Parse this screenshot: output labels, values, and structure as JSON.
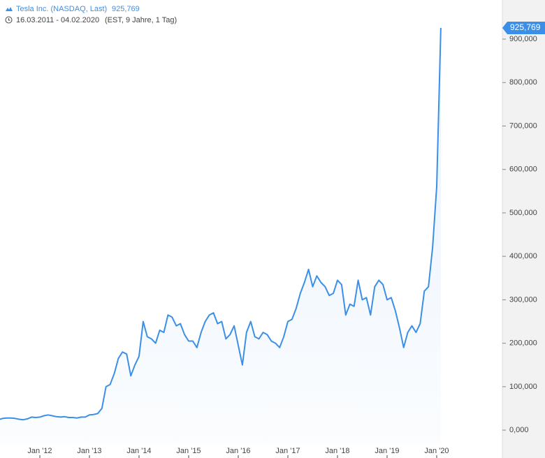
{
  "header": {
    "instrument": "Tesla Inc. (NASDAQ, Last)",
    "last_value": "925,769",
    "range": "16.03.2011 - 04.02.2020",
    "info": "(EST, 9 Jahre, 1 Tag)"
  },
  "chart_data": {
    "type": "line",
    "x": [
      "2011-03",
      "2011-04",
      "2011-05",
      "2011-06",
      "2011-07",
      "2011-08",
      "2011-09",
      "2011-10",
      "2011-11",
      "2011-12",
      "2012-01",
      "2012-02",
      "2012-03",
      "2012-04",
      "2012-05",
      "2012-06",
      "2012-07",
      "2012-08",
      "2012-09",
      "2012-10",
      "2012-11",
      "2012-12",
      "2013-01",
      "2013-02",
      "2013-03",
      "2013-04",
      "2013-05",
      "2013-06",
      "2013-07",
      "2013-08",
      "2013-09",
      "2013-10",
      "2013-11",
      "2013-12",
      "2014-01",
      "2014-02",
      "2014-03",
      "2014-04",
      "2014-05",
      "2014-06",
      "2014-07",
      "2014-08",
      "2014-09",
      "2014-10",
      "2014-11",
      "2014-12",
      "2015-01",
      "2015-02",
      "2015-03",
      "2015-04",
      "2015-05",
      "2015-06",
      "2015-07",
      "2015-08",
      "2015-09",
      "2015-10",
      "2015-11",
      "2015-12",
      "2016-01",
      "2016-02",
      "2016-03",
      "2016-04",
      "2016-05",
      "2016-06",
      "2016-07",
      "2016-08",
      "2016-09",
      "2016-10",
      "2016-11",
      "2016-12",
      "2017-01",
      "2017-02",
      "2017-03",
      "2017-04",
      "2017-05",
      "2017-06",
      "2017-07",
      "2017-08",
      "2017-09",
      "2017-10",
      "2017-11",
      "2017-12",
      "2018-01",
      "2018-02",
      "2018-03",
      "2018-04",
      "2018-05",
      "2018-06",
      "2018-07",
      "2018-08",
      "2018-09",
      "2018-10",
      "2018-11",
      "2018-12",
      "2019-01",
      "2019-02",
      "2019-03",
      "2019-04",
      "2019-05",
      "2019-06",
      "2019-07",
      "2019-08",
      "2019-09",
      "2019-10",
      "2019-11",
      "2019-12",
      "2020-01",
      "2020-02"
    ],
    "series": [
      {
        "name": "Tesla Inc. (NASDAQ, Last)",
        "color": "#3b8fe8",
        "values": [
          24000,
          27000,
          28000,
          28000,
          27000,
          25000,
          24000,
          26000,
          30000,
          29000,
          30000,
          33000,
          35000,
          33000,
          31000,
          30000,
          31000,
          29000,
          29000,
          28000,
          30000,
          30000,
          35000,
          36000,
          38000,
          50000,
          100000,
          105000,
          130000,
          165000,
          180000,
          175000,
          125000,
          150000,
          170000,
          250000,
          215000,
          210000,
          200000,
          230000,
          225000,
          265000,
          260000,
          240000,
          245000,
          220000,
          205000,
          205000,
          190000,
          225000,
          250000,
          265000,
          270000,
          245000,
          250000,
          210000,
          220000,
          240000,
          195000,
          150000,
          225000,
          250000,
          215000,
          210000,
          225000,
          220000,
          205000,
          200000,
          190000,
          215000,
          250000,
          255000,
          280000,
          315000,
          340000,
          370000,
          330000,
          355000,
          340000,
          330000,
          310000,
          315000,
          345000,
          335000,
          265000,
          290000,
          285000,
          345000,
          300000,
          305000,
          265000,
          330000,
          345000,
          335000,
          300000,
          305000,
          275000,
          235000,
          190000,
          225000,
          240000,
          225000,
          245000,
          320000,
          330000,
          420000,
          560000,
          925769
        ]
      }
    ],
    "xticks": [
      {
        "value": "2012-01",
        "label": "Jan '12"
      },
      {
        "value": "2013-01",
        "label": "Jan '13"
      },
      {
        "value": "2014-01",
        "label": "Jan '14"
      },
      {
        "value": "2015-01",
        "label": "Jan '15"
      },
      {
        "value": "2016-01",
        "label": "Jan '16"
      },
      {
        "value": "2017-01",
        "label": "Jan '17"
      },
      {
        "value": "2018-01",
        "label": "Jan '18"
      },
      {
        "value": "2019-01",
        "label": "Jan '19"
      },
      {
        "value": "2020-01",
        "label": "Jan '20"
      }
    ],
    "ylim": [
      -32000,
      990000
    ],
    "yticks": [
      {
        "value": 0,
        "label": "0,000"
      },
      {
        "value": 100000,
        "label": "100,000"
      },
      {
        "value": 200000,
        "label": "200,000"
      },
      {
        "value": 300000,
        "label": "300,000"
      },
      {
        "value": 400000,
        "label": "400,000"
      },
      {
        "value": 500000,
        "label": "500,000"
      },
      {
        "value": 600000,
        "label": "600,000"
      },
      {
        "value": 700000,
        "label": "700,000"
      },
      {
        "value": 800000,
        "label": "800,000"
      },
      {
        "value": 900000,
        "label": "900,000"
      }
    ]
  }
}
